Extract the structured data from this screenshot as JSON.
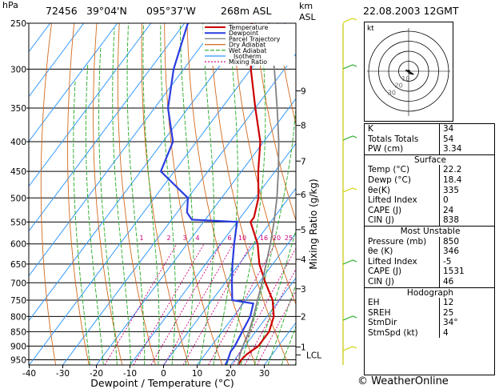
{
  "header": {
    "station": "72456",
    "lat": "39°04'N",
    "lon": "095°37'W",
    "elevation": "268m  ASL",
    "datetime": "22.08.2003  12GMT",
    "hpa_label": "hPa",
    "km_label": "km",
    "asl_label": "ASL"
  },
  "chart_data": {
    "type": "line",
    "title": "",
    "xlabel": "Dewpoint / Temperature (°C)",
    "ylabel": "hPa",
    "right_axis_label": "Mixing Ratio (g/kg)",
    "xlim": [
      -40,
      40
    ],
    "ylim": [
      970,
      250
    ],
    "log_y": true,
    "pressure_ticks": [
      250,
      300,
      350,
      400,
      450,
      500,
      550,
      600,
      650,
      700,
      750,
      800,
      850,
      900,
      950
    ],
    "temp_ticks": [
      -40,
      -30,
      -20,
      -10,
      0,
      10,
      20,
      30
    ],
    "km_ticks": [
      {
        "label": "1",
        "p": 903
      },
      {
        "label": "2",
        "p": 800
      },
      {
        "label": "3",
        "p": 717
      },
      {
        "label": "4",
        "p": 638
      },
      {
        "label": "5",
        "p": 567
      },
      {
        "label": "6",
        "p": 493
      },
      {
        "label": "7",
        "p": 432
      },
      {
        "label": "8",
        "p": 375
      },
      {
        "label": "9",
        "p": 327
      }
    ],
    "lcl": {
      "label": "LCL",
      "p": 932
    },
    "mixing_ratio_labels": [
      "1",
      "2",
      "3",
      "4",
      "6",
      "10",
      "16",
      "20",
      "25"
    ],
    "mixing_ratio_values": [
      1,
      2,
      3,
      4,
      6,
      10,
      16,
      20,
      25
    ],
    "legend": [
      "Temperature",
      "Dewpoint",
      "Parcel Trajectory",
      "Dry Adiabat",
      "Wet Adiabat",
      "Isotherm",
      "Mixing Ratio"
    ],
    "legend_colors": [
      "#cc0000",
      "#2a3de0",
      "#808080",
      "#d2691e",
      "#22aa22",
      "#3399ff",
      "#cc0077"
    ],
    "series": [
      {
        "name": "Temperature",
        "color": "#cc0000",
        "points": [
          [
            970,
            22.2
          ],
          [
            950,
            22
          ],
          [
            930,
            22.4
          ],
          [
            900,
            24
          ],
          [
            850,
            24
          ],
          [
            800,
            22
          ],
          [
            750,
            18
          ],
          [
            700,
            12
          ],
          [
            650,
            6
          ],
          [
            600,
            1
          ],
          [
            550,
            -6
          ],
          [
            540,
            -6
          ],
          [
            500,
            -9
          ],
          [
            450,
            -15
          ],
          [
            400,
            -21
          ],
          [
            350,
            -30
          ],
          [
            300,
            -40
          ],
          [
            250,
            -50
          ]
        ]
      },
      {
        "name": "Dewpoint",
        "color": "#2a3de0",
        "points": [
          [
            970,
            18.4
          ],
          [
            950,
            18
          ],
          [
            920,
            17
          ],
          [
            900,
            17
          ],
          [
            850,
            16
          ],
          [
            800,
            15
          ],
          [
            760,
            13
          ],
          [
            750,
            6
          ],
          [
            700,
            2
          ],
          [
            650,
            -2
          ],
          [
            600,
            -6
          ],
          [
            550,
            -10
          ],
          [
            545,
            -24
          ],
          [
            530,
            -27
          ],
          [
            500,
            -30
          ],
          [
            450,
            -44
          ],
          [
            400,
            -47
          ],
          [
            350,
            -56
          ],
          [
            300,
            -63
          ],
          [
            250,
            -69
          ]
        ]
      },
      {
        "name": "Parcel Trajectory",
        "color": "#808080",
        "points": [
          [
            970,
            22.2
          ],
          [
            932,
            20.5
          ],
          [
            900,
            19.4
          ],
          [
            850,
            18
          ],
          [
            800,
            16
          ],
          [
            750,
            13.5
          ],
          [
            700,
            11
          ],
          [
            650,
            8
          ],
          [
            600,
            4.8
          ],
          [
            550,
            1
          ],
          [
            500,
            -3.5
          ],
          [
            450,
            -9
          ],
          [
            400,
            -15.5
          ],
          [
            350,
            -23.5
          ],
          [
            300,
            -33
          ],
          [
            250,
            -45
          ]
        ]
      }
    ]
  },
  "hodograph": {
    "label": "kt",
    "ring_labels": [
      "10",
      "20",
      "30"
    ],
    "vectors": [
      [
        -3,
        1
      ],
      [
        1,
        0
      ],
      [
        7,
        -4
      ],
      [
        -5,
        1
      ]
    ]
  },
  "indices": {
    "rows1": [
      {
        "label": "K",
        "value": "34"
      },
      {
        "label": "Totals Totals",
        "value": "54"
      },
      {
        "label": "PW (cm)",
        "value": "3.34"
      }
    ],
    "surface_title": "Surface",
    "surface": [
      {
        "label": "Temp (°C)",
        "value": "22.2"
      },
      {
        "label": "Dewp (°C)",
        "value": "18.4"
      },
      {
        "label": "θe(K)",
        "value": "335"
      },
      {
        "label": "Lifted Index",
        "value": "0"
      },
      {
        "label": "CAPE (J)",
        "value": "24"
      },
      {
        "label": "CIN (J)",
        "value": "838"
      }
    ],
    "mu_title": "Most Unstable",
    "mu": [
      {
        "label": "Pressure (mb)",
        "value": "850"
      },
      {
        "label": "θe (K)",
        "value": "346"
      },
      {
        "label": "Lifted Index",
        "value": "-5"
      },
      {
        "label": "CAPE (J)",
        "value": "1531"
      },
      {
        "label": "CIN (J)",
        "value": "46"
      }
    ],
    "hodo_title": "Hodograph",
    "hodo": [
      {
        "label": "EH",
        "value": "12"
      },
      {
        "label": "SREH",
        "value": "25"
      },
      {
        "label": "StmDir",
        "value": "34°"
      },
      {
        "label": "StmSpd (kt)",
        "value": "4"
      }
    ]
  },
  "credit": "© WeatherOnline"
}
